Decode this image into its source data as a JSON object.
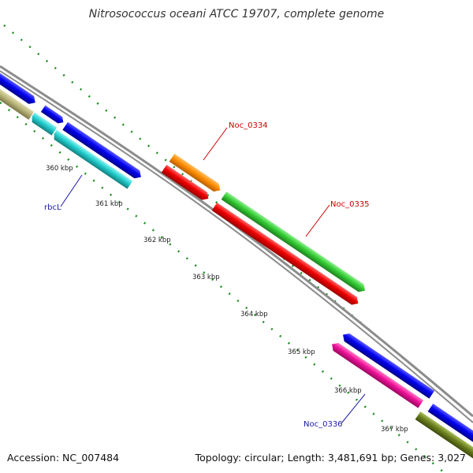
{
  "title": "Nitrosococcus oceani ATCC 19707, complete genome",
  "footer": {
    "accession": "Accession: NC_007484",
    "topology": "Topology: circular; Length: 3,481,691 bp; Genes: 3,027"
  },
  "ticks": [
    "360 kbp",
    "361 kbp",
    "362 kbp",
    "363 kbp",
    "364 kbp",
    "365 kbp",
    "366 kbp",
    "367 kbp"
  ],
  "gene_labels": [
    {
      "id": "rbcL",
      "text": "rbcL",
      "color": "#1a1aa8"
    },
    {
      "id": "noc0334",
      "text": "Noc_0334",
      "color": "#cc0000"
    },
    {
      "id": "noc0335",
      "text": "Noc_0335",
      "color": "#cc0000"
    },
    {
      "id": "noc0336",
      "text": "Noc_0336",
      "color": "#1a1aa8"
    }
  ],
  "colors": {
    "backbone": "#8c8c8c",
    "gc_dots": "#1e8c1e",
    "blue": "#0000ee",
    "cyan": "#22cccc",
    "khaki": "#b8b47a",
    "orange": "#ff8c00",
    "red": "#ee0000",
    "green": "#33cc33",
    "magenta": "#ee1199",
    "olive": "#6b7f1e"
  }
}
